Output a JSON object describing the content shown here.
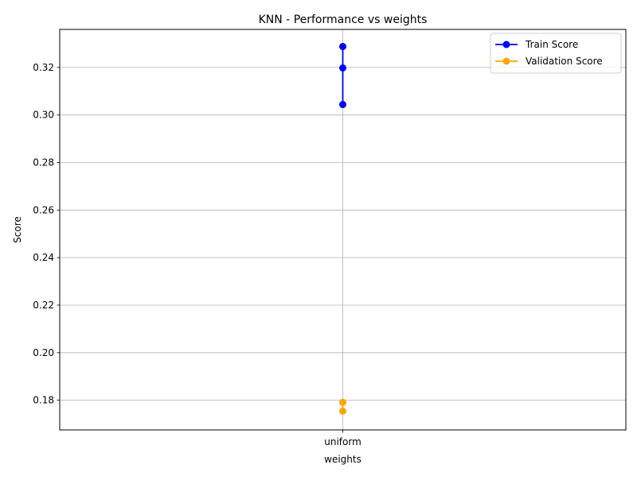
{
  "chart_data": {
    "type": "line",
    "title": "KNN - Performance vs weights",
    "xlabel": "weights",
    "ylabel": "Score",
    "categories": [
      "uniform"
    ],
    "ylim": [
      0.1675,
      0.336
    ],
    "yticks": [
      "0.18",
      "0.20",
      "0.22",
      "0.24",
      "0.26",
      "0.28",
      "0.30",
      "0.32"
    ],
    "ytick_values": [
      0.18,
      0.2,
      0.22,
      0.24,
      0.26,
      0.28,
      0.3,
      0.32
    ],
    "grid": true,
    "legend_position": "top-right",
    "series": [
      {
        "name": "Train Score",
        "color": "#0000ff",
        "points": [
          {
            "x": "uniform",
            "y": 0.3288
          },
          {
            "x": "uniform",
            "y": 0.3198
          },
          {
            "x": "uniform",
            "y": 0.3044
          }
        ]
      },
      {
        "name": "Validation Score",
        "color": "#ffa500",
        "points": [
          {
            "x": "uniform",
            "y": 0.1791
          },
          {
            "x": "uniform",
            "y": 0.1754
          }
        ]
      }
    ]
  }
}
